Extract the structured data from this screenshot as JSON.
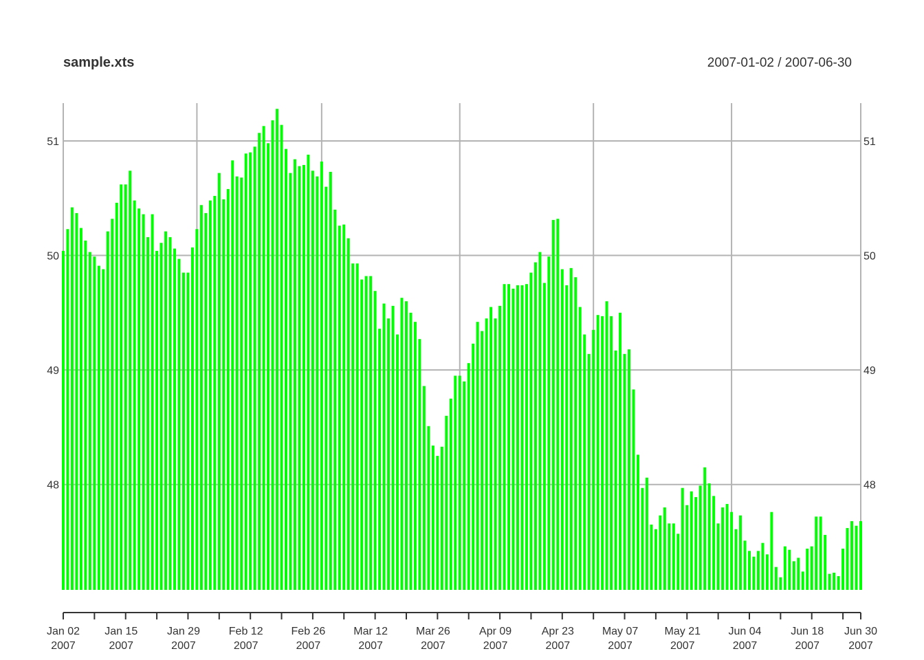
{
  "chart_data": {
    "type": "bar",
    "title": "sample.xts",
    "date_range": "2007-01-02 / 2007-06-30",
    "series_color": "#00ff00",
    "grid_color": "#b3b3b3",
    "ylim": [
      47.08,
      51.33
    ],
    "yticks": [
      "48",
      "49",
      "50",
      "51"
    ],
    "xticks": [
      {
        "date": "2007-01-02",
        "label": "Jan 02",
        "year": "2007"
      },
      {
        "date": "2007-01-15",
        "label": "Jan 15",
        "year": "2007"
      },
      {
        "date": "2007-01-29",
        "label": "Jan 29",
        "year": "2007"
      },
      {
        "date": "2007-02-12",
        "label": "Feb 12",
        "year": "2007"
      },
      {
        "date": "2007-02-26",
        "label": "Feb 26",
        "year": "2007"
      },
      {
        "date": "2007-03-12",
        "label": "Mar 12",
        "year": "2007"
      },
      {
        "date": "2007-03-26",
        "label": "Mar 26",
        "year": "2007"
      },
      {
        "date": "2007-04-09",
        "label": "Apr 09",
        "year": "2007"
      },
      {
        "date": "2007-04-23",
        "label": "Apr 23",
        "year": "2007"
      },
      {
        "date": "2007-05-07",
        "label": "May 07",
        "year": "2007"
      },
      {
        "date": "2007-05-21",
        "label": "May 21",
        "year": "2007"
      },
      {
        "date": "2007-06-04",
        "label": "Jun 04",
        "year": "2007"
      },
      {
        "date": "2007-06-18",
        "label": "Jun 18",
        "year": "2007"
      },
      {
        "date": "2007-06-30",
        "label": "Jun 30",
        "year": "2007"
      }
    ],
    "vgrid_dates": [
      "2007-01-02",
      "2007-02-01",
      "2007-03-01",
      "2007-04-01",
      "2007-05-01",
      "2007-06-01",
      "2007-06-30"
    ],
    "start_date": "2007-01-02",
    "values": [
      50.04,
      50.23,
      50.42,
      50.37,
      50.24,
      50.13,
      50.03,
      49.99,
      49.91,
      49.88,
      50.21,
      50.32,
      50.46,
      50.62,
      50.62,
      50.74,
      50.48,
      50.41,
      50.36,
      50.16,
      50.36,
      50.04,
      50.11,
      50.21,
      50.16,
      50.06,
      49.97,
      49.85,
      49.85,
      50.07,
      50.23,
      50.44,
      50.37,
      50.48,
      50.52,
      50.72,
      50.49,
      50.58,
      50.83,
      50.69,
      50.68,
      50.89,
      50.9,
      50.95,
      51.07,
      51.13,
      50.98,
      51.18,
      51.28,
      51.14,
      50.93,
      50.72,
      50.84,
      50.78,
      50.79,
      50.88,
      50.74,
      50.69,
      50.82,
      50.6,
      50.73,
      50.4,
      50.26,
      50.27,
      50.15,
      49.93,
      49.93,
      49.79,
      49.82,
      49.82,
      49.69,
      49.36,
      49.58,
      49.45,
      49.56,
      49.31,
      49.63,
      49.6,
      49.5,
      49.42,
      49.27,
      48.86,
      48.51,
      48.34,
      48.25,
      48.33,
      48.6,
      48.75,
      48.95,
      48.95,
      48.9,
      49.06,
      49.23,
      49.42,
      49.34,
      49.45,
      49.55,
      49.45,
      49.56,
      49.75,
      49.75,
      49.71,
      49.74,
      49.74,
      49.75,
      49.85,
      49.94,
      50.03,
      49.76,
      49.99,
      50.31,
      50.32,
      49.88,
      49.74,
      49.89,
      49.81,
      49.55,
      49.31,
      49.14,
      49.35,
      49.48,
      49.47,
      49.6,
      49.47,
      49.17,
      49.5,
      49.14,
      49.18,
      48.83,
      48.26,
      47.97,
      48.06,
      47.65,
      47.61,
      47.73,
      47.8,
      47.66,
      47.66,
      47.57,
      47.97,
      47.82,
      47.94,
      47.89,
      47.99,
      48.15,
      48.01,
      47.9,
      47.66,
      47.8,
      47.83,
      47.76,
      47.61,
      47.73,
      47.51,
      47.42,
      47.37,
      47.42,
      47.49,
      47.39,
      47.76,
      47.28,
      47.19,
      47.46,
      47.43,
      47.33,
      47.36,
      47.24,
      47.44,
      47.46,
      47.72,
      47.72,
      47.56,
      47.22,
      47.23,
      47.2,
      47.44,
      47.62,
      47.68,
      47.64,
      47.68
    ]
  }
}
